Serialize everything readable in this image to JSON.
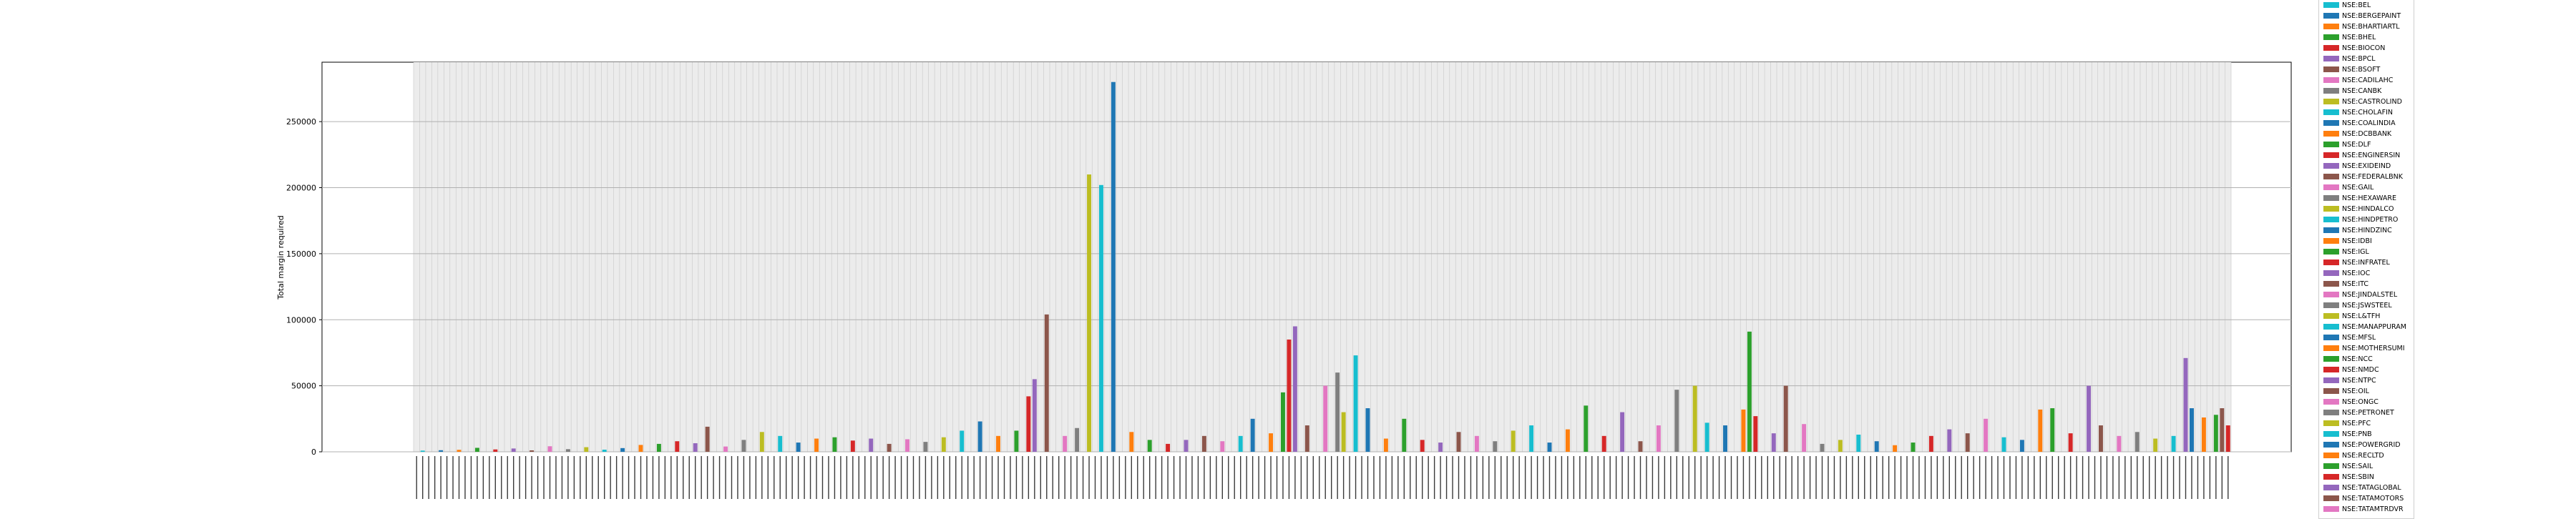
{
  "chart_data": {
    "type": "bar",
    "title": "",
    "xlabel": "",
    "ylabel": "Total margin required",
    "ylim": [
      0,
      295000
    ],
    "yticks": [
      0,
      50000,
      100000,
      150000,
      200000,
      250000
    ],
    "ytick_labels": [
      "0",
      "50000",
      "100000",
      "150000",
      "200000",
      "250000"
    ],
    "grid": true,
    "legend_placement": "right",
    "x_category_count": 300,
    "x_tick_labels_note": "dense rotated date labels, illegible at this resolution",
    "series": [
      {
        "name": "NSE:BEL",
        "color": "#17becf"
      },
      {
        "name": "NSE:BERGEPAINT",
        "color": "#1f77b4"
      },
      {
        "name": "NSE:BHARTIARTL",
        "color": "#ff7f0e"
      },
      {
        "name": "NSE:BHEL",
        "color": "#2ca02c"
      },
      {
        "name": "NSE:BIOCON",
        "color": "#d62728"
      },
      {
        "name": "NSE:BPCL",
        "color": "#9467bd"
      },
      {
        "name": "NSE:BSOFT",
        "color": "#8c564b"
      },
      {
        "name": "NSE:CADILAHC",
        "color": "#e377c2"
      },
      {
        "name": "NSE:CANBK",
        "color": "#7f7f7f"
      },
      {
        "name": "NSE:CASTROLIND",
        "color": "#bcbd22"
      },
      {
        "name": "NSE:CHOLAFIN",
        "color": "#17becf"
      },
      {
        "name": "NSE:COALINDIA",
        "color": "#1f77b4"
      },
      {
        "name": "NSE:DCBBANK",
        "color": "#ff7f0e"
      },
      {
        "name": "NSE:DLF",
        "color": "#2ca02c"
      },
      {
        "name": "NSE:ENGINERSIN",
        "color": "#d62728"
      },
      {
        "name": "NSE:EXIDEIND",
        "color": "#9467bd"
      },
      {
        "name": "NSE:FEDERALBNK",
        "color": "#8c564b"
      },
      {
        "name": "NSE:GAIL",
        "color": "#e377c2"
      },
      {
        "name": "NSE:HEXAWARE",
        "color": "#7f7f7f"
      },
      {
        "name": "NSE:HINDALCO",
        "color": "#bcbd22"
      },
      {
        "name": "NSE:HINDPETRO",
        "color": "#17becf"
      },
      {
        "name": "NSE:HINDZINC",
        "color": "#1f77b4"
      },
      {
        "name": "NSE:IDBI",
        "color": "#ff7f0e"
      },
      {
        "name": "NSE:IGL",
        "color": "#2ca02c"
      },
      {
        "name": "NSE:INFRATEL",
        "color": "#d62728"
      },
      {
        "name": "NSE:IOC",
        "color": "#9467bd"
      },
      {
        "name": "NSE:ITC",
        "color": "#8c564b"
      },
      {
        "name": "NSE:JINDALSTEL",
        "color": "#e377c2"
      },
      {
        "name": "NSE:JSWSTEEL",
        "color": "#7f7f7f"
      },
      {
        "name": "NSE:L&TFH",
        "color": "#bcbd22"
      },
      {
        "name": "NSE:MANAPPURAM",
        "color": "#17becf"
      },
      {
        "name": "NSE:MFSL",
        "color": "#1f77b4"
      },
      {
        "name": "NSE:MOTHERSUMI",
        "color": "#ff7f0e"
      },
      {
        "name": "NSE:NCC",
        "color": "#2ca02c"
      },
      {
        "name": "NSE:NMDC",
        "color": "#d62728"
      },
      {
        "name": "NSE:NTPC",
        "color": "#9467bd"
      },
      {
        "name": "NSE:OIL",
        "color": "#8c564b"
      },
      {
        "name": "NSE:ONGC",
        "color": "#e377c2"
      },
      {
        "name": "NSE:PETRONET",
        "color": "#7f7f7f"
      },
      {
        "name": "NSE:PFC",
        "color": "#bcbd22"
      },
      {
        "name": "NSE:PNB",
        "color": "#17becf"
      },
      {
        "name": "NSE:POWERGRID",
        "color": "#1f77b4"
      },
      {
        "name": "NSE:RECLTD",
        "color": "#ff7f0e"
      },
      {
        "name": "NSE:SAIL",
        "color": "#2ca02c"
      },
      {
        "name": "NSE:SBIN",
        "color": "#d62728"
      },
      {
        "name": "NSE:TATAGLOBAL",
        "color": "#9467bd"
      },
      {
        "name": "NSE:TATAMOTORS",
        "color": "#8c564b"
      },
      {
        "name": "NSE:TATAMTRDVR",
        "color": "#e377c2"
      }
    ],
    "bars": [
      {
        "x": 1,
        "value": 900
      },
      {
        "x": 4,
        "value": 1200
      },
      {
        "x": 7,
        "value": 1500
      },
      {
        "x": 10,
        "value": 3000
      },
      {
        "x": 13,
        "value": 1800
      },
      {
        "x": 16,
        "value": 2500
      },
      {
        "x": 19,
        "value": 1100
      },
      {
        "x": 22,
        "value": 4200
      },
      {
        "x": 25,
        "value": 2000
      },
      {
        "x": 28,
        "value": 3500
      },
      {
        "x": 31,
        "value": 1600
      },
      {
        "x": 34,
        "value": 2800
      },
      {
        "x": 37,
        "value": 5200
      },
      {
        "x": 40,
        "value": 6000
      },
      {
        "x": 43,
        "value": 8000
      },
      {
        "x": 46,
        "value": 6500
      },
      {
        "x": 48,
        "value": 19000
      },
      {
        "x": 51,
        "value": 4000
      },
      {
        "x": 54,
        "value": 9000
      },
      {
        "x": 57,
        "value": 15000
      },
      {
        "x": 60,
        "value": 12000
      },
      {
        "x": 63,
        "value": 7000
      },
      {
        "x": 66,
        "value": 10000
      },
      {
        "x": 69,
        "value": 11000
      },
      {
        "x": 72,
        "value": 8500
      },
      {
        "x": 75,
        "value": 10000
      },
      {
        "x": 78,
        "value": 6000
      },
      {
        "x": 81,
        "value": 9500
      },
      {
        "x": 84,
        "value": 7500
      },
      {
        "x": 87,
        "value": 11000
      },
      {
        "x": 90,
        "value": 16000
      },
      {
        "x": 93,
        "value": 23000
      },
      {
        "x": 96,
        "value": 12000
      },
      {
        "x": 99,
        "value": 16000
      },
      {
        "x": 101,
        "value": 42000
      },
      {
        "x": 102,
        "value": 55000
      },
      {
        "x": 104,
        "value": 104000
      },
      {
        "x": 107,
        "value": 12000
      },
      {
        "x": 109,
        "value": 18000
      },
      {
        "x": 111,
        "value": 210000
      },
      {
        "x": 113,
        "value": 202000
      },
      {
        "x": 115,
        "value": 280000
      },
      {
        "x": 118,
        "value": 15000
      },
      {
        "x": 121,
        "value": 9000
      },
      {
        "x": 124,
        "value": 6000
      },
      {
        "x": 127,
        "value": 9000
      },
      {
        "x": 130,
        "value": 12000
      },
      {
        "x": 133,
        "value": 8000
      },
      {
        "x": 136,
        "value": 12000
      },
      {
        "x": 138,
        "value": 25000
      },
      {
        "x": 141,
        "value": 14000
      },
      {
        "x": 143,
        "value": 45000
      },
      {
        "x": 144,
        "value": 85000
      },
      {
        "x": 145,
        "value": 95000
      },
      {
        "x": 147,
        "value": 20000
      },
      {
        "x": 150,
        "value": 50000
      },
      {
        "x": 152,
        "value": 60000
      },
      {
        "x": 153,
        "value": 30000
      },
      {
        "x": 155,
        "value": 73000
      },
      {
        "x": 157,
        "value": 33000
      },
      {
        "x": 160,
        "value": 10000
      },
      {
        "x": 163,
        "value": 25000
      },
      {
        "x": 166,
        "value": 9000
      },
      {
        "x": 169,
        "value": 7000
      },
      {
        "x": 172,
        "value": 15000
      },
      {
        "x": 175,
        "value": 12000
      },
      {
        "x": 178,
        "value": 8000
      },
      {
        "x": 181,
        "value": 16000
      },
      {
        "x": 184,
        "value": 20000
      },
      {
        "x": 187,
        "value": 7000
      },
      {
        "x": 190,
        "value": 17000
      },
      {
        "x": 193,
        "value": 35000
      },
      {
        "x": 196,
        "value": 12000
      },
      {
        "x": 199,
        "value": 30000
      },
      {
        "x": 202,
        "value": 8000
      },
      {
        "x": 205,
        "value": 20000
      },
      {
        "x": 208,
        "value": 47000
      },
      {
        "x": 211,
        "value": 50000
      },
      {
        "x": 213,
        "value": 22000
      },
      {
        "x": 216,
        "value": 20000
      },
      {
        "x": 219,
        "value": 32000
      },
      {
        "x": 220,
        "value": 91000
      },
      {
        "x": 221,
        "value": 27000
      },
      {
        "x": 224,
        "value": 14000
      },
      {
        "x": 226,
        "value": 50000
      },
      {
        "x": 229,
        "value": 21000
      },
      {
        "x": 232,
        "value": 6000
      },
      {
        "x": 235,
        "value": 9000
      },
      {
        "x": 238,
        "value": 13000
      },
      {
        "x": 241,
        "value": 8000
      },
      {
        "x": 244,
        "value": 5000
      },
      {
        "x": 247,
        "value": 7000
      },
      {
        "x": 250,
        "value": 12000
      },
      {
        "x": 253,
        "value": 17000
      },
      {
        "x": 256,
        "value": 14000
      },
      {
        "x": 259,
        "value": 25000
      },
      {
        "x": 262,
        "value": 11000
      },
      {
        "x": 265,
        "value": 9000
      },
      {
        "x": 268,
        "value": 32000
      },
      {
        "x": 270,
        "value": 33000
      },
      {
        "x": 273,
        "value": 14000
      },
      {
        "x": 276,
        "value": 50000
      },
      {
        "x": 278,
        "value": 20000
      },
      {
        "x": 281,
        "value": 12000
      },
      {
        "x": 284,
        "value": 15000
      },
      {
        "x": 287,
        "value": 10000
      },
      {
        "x": 290,
        "value": 12000
      },
      {
        "x": 293,
        "value": 33000
      },
      {
        "x": 295,
        "value": 26000
      },
      {
        "x": 297,
        "value": 28000
      },
      {
        "x": 299,
        "value": 20000
      },
      {
        "x": 292,
        "value": 71000
      },
      {
        "x": 298,
        "value": 33000
      }
    ]
  }
}
